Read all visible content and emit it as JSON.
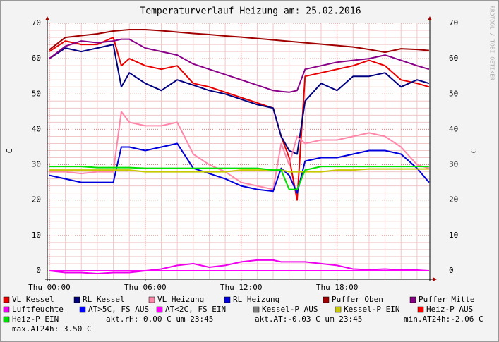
{
  "chart_data": {
    "type": "line",
    "title": "Temperaturverlauf Heizung am: 25.02.2016",
    "y_label": "C",
    "watermark": "RRDTOOL / TOBI OETIKER",
    "x": [
      0,
      1,
      2,
      3,
      4,
      4.5,
      5,
      6,
      7,
      8,
      9,
      10,
      11,
      12,
      13,
      14,
      14.5,
      15,
      15.5,
      16,
      17,
      18,
      19,
      20,
      21,
      22,
      23,
      23.75
    ],
    "xlim": [
      -0.13,
      23.8
    ],
    "xticks": [
      {
        "value": 0,
        "label": "Thu 00:00"
      },
      {
        "value": 6,
        "label": "Thu 06:00"
      },
      {
        "value": 12,
        "label": "Thu 12:00"
      },
      {
        "value": 18,
        "label": "Thu 18:00"
      }
    ],
    "ylim": [
      -2.4,
      70
    ],
    "yticks": [
      0,
      10,
      20,
      30,
      40,
      50,
      60,
      70
    ],
    "grid": true,
    "series": [
      {
        "name": "VL Kessel",
        "color": "#e80000",
        "values": [
          62,
          65,
          64,
          64,
          66,
          58,
          60,
          58,
          57,
          58,
          53,
          52,
          50.5,
          49,
          47.5,
          46,
          38,
          32,
          20,
          55,
          56,
          57,
          58,
          59.5,
          58,
          54,
          53,
          52
        ]
      },
      {
        "name": "RL Kessel",
        "color": "#000080",
        "values": [
          60,
          63,
          62,
          63,
          64,
          52,
          56,
          53,
          51,
          54,
          52.5,
          51,
          50,
          48.5,
          47,
          46,
          38,
          34,
          33,
          48,
          53,
          51,
          55,
          55,
          56,
          52,
          54,
          53
        ]
      },
      {
        "name": "VL Heizung",
        "color": "#ff88aa",
        "values": [
          28,
          28,
          27.5,
          28,
          28,
          45,
          42,
          41,
          41,
          42,
          33,
          30,
          28,
          25,
          24,
          23,
          36,
          30,
          38,
          36,
          37,
          37,
          38,
          39,
          38,
          35,
          30,
          29
        ]
      },
      {
        "name": "RL Heizung",
        "color": "#0000dd",
        "values": [
          27,
          26,
          25,
          25,
          25,
          35,
          35,
          34,
          35,
          36,
          29,
          27.5,
          26,
          24,
          23,
          22.5,
          29,
          27,
          22,
          31,
          32,
          32,
          33,
          34,
          34,
          33,
          29,
          25
        ]
      },
      {
        "name": "Puffer Oben",
        "color": "#a00000",
        "values": [
          62.5,
          66,
          66.5,
          67,
          67.8,
          68,
          68.2,
          68.2,
          67.9,
          67.5,
          67.1,
          66.8,
          66.4,
          66.1,
          65.7,
          65.3,
          65.1,
          64.9,
          64.7,
          64.5,
          64.1,
          63.7,
          63.3,
          62.6,
          61.8,
          62.8,
          62.6,
          62.3
        ]
      },
      {
        "name": "Puffer Mitte",
        "color": "#880088",
        "values": [
          60,
          63.5,
          65,
          64.5,
          65,
          65.5,
          65.5,
          63,
          62,
          61,
          58.5,
          57,
          55.5,
          54,
          52.5,
          51,
          50.7,
          50.5,
          51,
          57,
          58,
          59,
          59.5,
          60,
          61,
          59.5,
          58,
          57
        ]
      },
      {
        "name": "Luftfeuchte",
        "color": "#ee00ee",
        "values": [
          0,
          -0.5,
          -0.5,
          -0.8,
          -0.5,
          -0.5,
          -0.5,
          0,
          0.5,
          1.5,
          2,
          1,
          1.5,
          2.5,
          3,
          3,
          2.5,
          2.5,
          2.5,
          2.5,
          2,
          1.5,
          0.5,
          0.3,
          0.5,
          0.2,
          0.2,
          0
        ]
      },
      {
        "name": "AT>5C, FS AUS",
        "color": "#0000ff"
      },
      {
        "name": "AT<2C, FS EIN",
        "color": "#ff00ff",
        "values": [
          0,
          0,
          0,
          0,
          0,
          0,
          0,
          0,
          0,
          0,
          0,
          0,
          0,
          0,
          0,
          0,
          0,
          0,
          0,
          0,
          0,
          0,
          0,
          0,
          0,
          0,
          0,
          0
        ]
      },
      {
        "name": "Kessel-P AUS",
        "color": "#808080"
      },
      {
        "name": "Kessel-P EIN",
        "color": "#c8c800",
        "values": [
          28.5,
          28.5,
          28.5,
          28.5,
          28.5,
          28.5,
          28.5,
          28,
          28,
          28,
          28,
          28,
          28,
          28.5,
          28.5,
          28.5,
          28.5,
          28,
          28,
          28,
          28,
          28.5,
          28.5,
          28.8,
          28.8,
          28.8,
          28.8,
          28.8
        ]
      },
      {
        "name": "Heiz-P AUS",
        "color": "#ff0000"
      },
      {
        "name": "Heiz-P EIN",
        "color": "#00e000",
        "values": [
          29.5,
          29.5,
          29.5,
          29.2,
          29.2,
          29.2,
          29.2,
          29,
          29,
          29,
          29,
          29,
          29,
          29,
          29,
          28.5,
          28.5,
          23,
          23,
          28.5,
          29.5,
          29.5,
          29.5,
          29.5,
          29.5,
          29.5,
          29.5,
          29.5
        ]
      }
    ],
    "notes": [
      "akt.rH: 0.00 C um 23:45",
      "akt.AT:-0.03 C um 23:45",
      "min.AT24h:-2.06 C",
      "max.AT24h: 3.50 C"
    ]
  }
}
